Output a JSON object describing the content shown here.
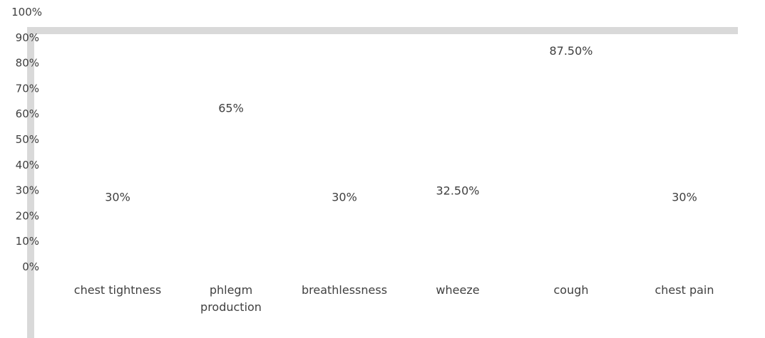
{
  "chart_data": {
    "type": "bar",
    "title": "",
    "xlabel": "",
    "ylabel": "",
    "ylim": [
      0,
      1
    ],
    "y_ticks": [
      "0%",
      "10%",
      "20%",
      "30%",
      "40%",
      "50%",
      "60%",
      "70%",
      "80%",
      "90%",
      "100%"
    ],
    "categories": [
      [
        "chest tightness"
      ],
      [
        "phlegm",
        "production"
      ],
      [
        "breathlessness"
      ],
      [
        "wheeze"
      ],
      [
        "cough"
      ],
      [
        "chest pain"
      ]
    ],
    "values": [
      0.3,
      0.65,
      0.3,
      0.325,
      0.875,
      0.3
    ],
    "data_labels": [
      "30%",
      "65%",
      "30%",
      "32.50%",
      "87.50%",
      "30%"
    ],
    "grid": false,
    "legend": "none",
    "colors": {
      "frame": "#d9d9d9",
      "text": "#404040"
    }
  }
}
